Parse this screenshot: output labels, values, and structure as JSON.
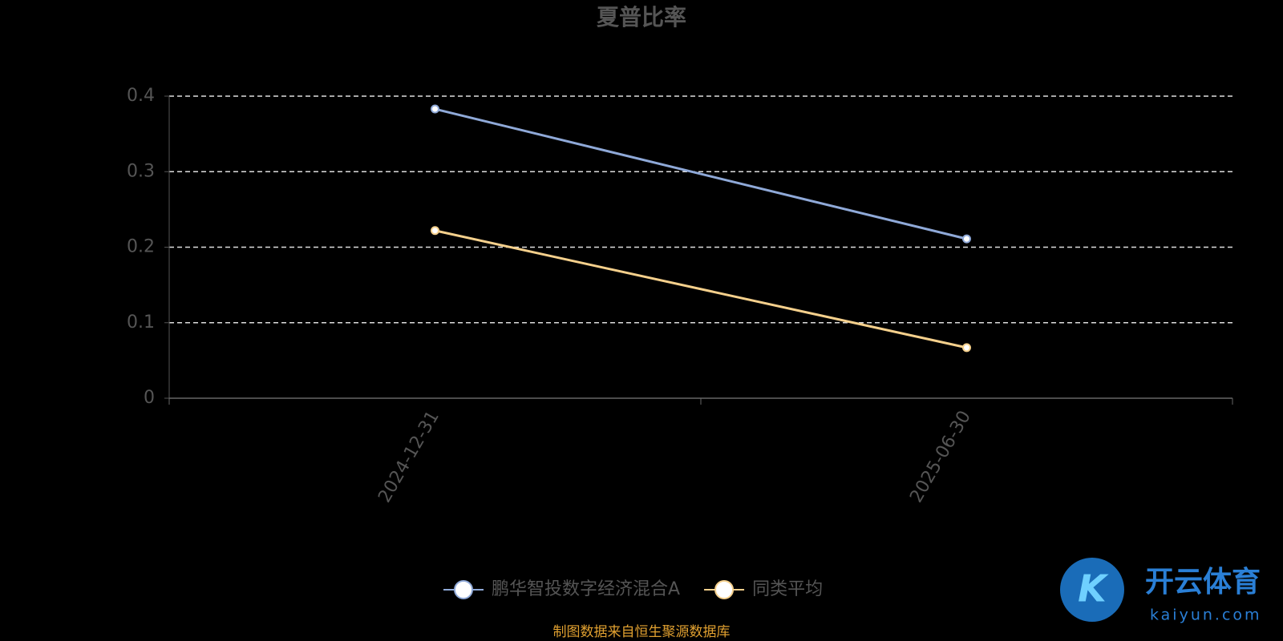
{
  "chart_data": {
    "type": "line",
    "title": "夏普比率",
    "categories": [
      "2024-12-31",
      "2025-06-30"
    ],
    "series": [
      {
        "name": "鹏华智投数字经济混合A",
        "color": "#8fa9d8",
        "values": [
          0.383,
          0.211
        ]
      },
      {
        "name": "同类平均",
        "color": "#f5d08c",
        "values": [
          0.222,
          0.067
        ]
      }
    ],
    "ylim": [
      0,
      0.4
    ],
    "yticks": [
      0,
      0.1,
      0.2,
      0.3,
      0.4
    ],
    "grid": true,
    "legend": "bottom",
    "source": "制图数据来自恒生聚源数据库",
    "watermark": {
      "brand": "开云体育",
      "site": "kaiyun.com"
    }
  }
}
